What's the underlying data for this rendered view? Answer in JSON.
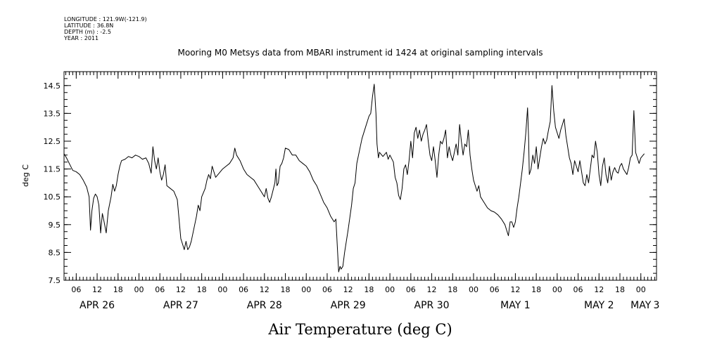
{
  "header": {
    "lines": [
      "LONGITUDE : 121.9W(-121.9)",
      "LATITUDE : 36.8N",
      "DEPTH (m) : -2.5",
      "YEAR : 2011"
    ]
  },
  "chart_data": {
    "type": "line",
    "title": "Mooring M0 Metsys data from MBARI instrument id 1424 at original sampling intervals",
    "xlabel": "Air Temperature (deg C)",
    "ylabel": "deg C",
    "ylim": [
      7.5,
      15.0
    ],
    "xlim": [
      2.5,
      172.5
    ],
    "y_ticks": [
      "7.5",
      "8.5",
      "9.5",
      "10.5",
      "11.5",
      "12.5",
      "13.5",
      "14.5"
    ],
    "x_hour_ticks": [
      {
        "x": 6,
        "label": "06"
      },
      {
        "x": 12,
        "label": "12"
      },
      {
        "x": 18,
        "label": "18"
      },
      {
        "x": 24,
        "label": "00"
      },
      {
        "x": 30,
        "label": "06"
      },
      {
        "x": 36,
        "label": "12"
      },
      {
        "x": 42,
        "label": "18"
      },
      {
        "x": 48,
        "label": "00"
      },
      {
        "x": 54,
        "label": "06"
      },
      {
        "x": 60,
        "label": "12"
      },
      {
        "x": 66,
        "label": "18"
      },
      {
        "x": 72,
        "label": "00"
      },
      {
        "x": 78,
        "label": "06"
      },
      {
        "x": 84,
        "label": "12"
      },
      {
        "x": 90,
        "label": "18"
      },
      {
        "x": 96,
        "label": "00"
      },
      {
        "x": 102,
        "label": "06"
      },
      {
        "x": 108,
        "label": "12"
      },
      {
        "x": 114,
        "label": "18"
      },
      {
        "x": 120,
        "label": "00"
      },
      {
        "x": 126,
        "label": "06"
      },
      {
        "x": 132,
        "label": "12"
      },
      {
        "x": 138,
        "label": "18"
      },
      {
        "x": 144,
        "label": "00"
      },
      {
        "x": 150,
        "label": "06"
      },
      {
        "x": 156,
        "label": "12"
      },
      {
        "x": 162,
        "label": "18"
      },
      {
        "x": 168,
        "label": "00"
      }
    ],
    "x_day_labels": [
      {
        "x": 12,
        "label": "APR 26"
      },
      {
        "x": 36,
        "label": "APR 27"
      },
      {
        "x": 60,
        "label": "APR 28"
      },
      {
        "x": 84,
        "label": "APR 29"
      },
      {
        "x": 108,
        "label": "APR 30"
      },
      {
        "x": 132,
        "label": "MAY  1"
      },
      {
        "x": 156,
        "label": "MAY  2"
      },
      {
        "x": 168,
        "label": "MAY"
      },
      {
        "x": 172.5,
        "label": "3"
      }
    ],
    "series": [
      {
        "color": "#000000",
        "points": [
          [
            2.5,
            12.05
          ],
          [
            3.2,
            11.9
          ],
          [
            4,
            11.7
          ],
          [
            5,
            11.45
          ],
          [
            6,
            11.4
          ],
          [
            7,
            11.3
          ],
          [
            8,
            11.1
          ],
          [
            9,
            10.85
          ],
          [
            9.7,
            10.5
          ],
          [
            10.1,
            9.3
          ],
          [
            10.5,
            10.0
          ],
          [
            11,
            10.45
          ],
          [
            11.5,
            10.6
          ],
          [
            12,
            10.5
          ],
          [
            12.5,
            10.2
          ],
          [
            13,
            9.2
          ],
          [
            13.5,
            9.9
          ],
          [
            14,
            9.6
          ],
          [
            14.6,
            9.2
          ],
          [
            15.2,
            10.0
          ],
          [
            16,
            10.5
          ],
          [
            16.5,
            10.95
          ],
          [
            17,
            10.7
          ],
          [
            17.5,
            10.9
          ],
          [
            18,
            11.3
          ],
          [
            18.5,
            11.6
          ],
          [
            19,
            11.8
          ],
          [
            20,
            11.85
          ],
          [
            21,
            11.95
          ],
          [
            22,
            11.9
          ],
          [
            23,
            12.0
          ],
          [
            24,
            11.95
          ],
          [
            25,
            11.85
          ],
          [
            26,
            11.9
          ],
          [
            26.8,
            11.7
          ],
          [
            27.5,
            11.35
          ],
          [
            28,
            12.3
          ],
          [
            28.5,
            11.8
          ],
          [
            29,
            11.5
          ],
          [
            29.5,
            11.9
          ],
          [
            30,
            11.4
          ],
          [
            30.5,
            11.1
          ],
          [
            31,
            11.3
          ],
          [
            31.5,
            11.65
          ],
          [
            32,
            10.9
          ],
          [
            33,
            10.8
          ],
          [
            34,
            10.7
          ],
          [
            35,
            10.4
          ],
          [
            35.5,
            9.7
          ],
          [
            36,
            9.0
          ],
          [
            36.5,
            8.8
          ],
          [
            37,
            8.6
          ],
          [
            37.5,
            8.9
          ],
          [
            38,
            8.6
          ],
          [
            38.5,
            8.7
          ],
          [
            39,
            8.9
          ],
          [
            39.5,
            9.2
          ],
          [
            40,
            9.5
          ],
          [
            40.5,
            9.8
          ],
          [
            41,
            10.2
          ],
          [
            41.5,
            10.0
          ],
          [
            42,
            10.5
          ],
          [
            43,
            10.8
          ],
          [
            43.5,
            11.1
          ],
          [
            44,
            11.3
          ],
          [
            44.5,
            11.15
          ],
          [
            45,
            11.6
          ],
          [
            46,
            11.2
          ],
          [
            47,
            11.35
          ],
          [
            48,
            11.5
          ],
          [
            49,
            11.6
          ],
          [
            50,
            11.7
          ],
          [
            51,
            11.9
          ],
          [
            51.5,
            12.25
          ],
          [
            52,
            12.0
          ],
          [
            53,
            11.8
          ],
          [
            54,
            11.5
          ],
          [
            55,
            11.3
          ],
          [
            56,
            11.2
          ],
          [
            57,
            11.1
          ],
          [
            58,
            10.9
          ],
          [
            59,
            10.7
          ],
          [
            60,
            10.5
          ],
          [
            60.5,
            10.8
          ],
          [
            61,
            10.45
          ],
          [
            61.5,
            10.3
          ],
          [
            62,
            10.5
          ],
          [
            63,
            11.0
          ],
          [
            63.3,
            11.5
          ],
          [
            63.6,
            10.9
          ],
          [
            64,
            11.0
          ],
          [
            64.5,
            11.6
          ],
          [
            65,
            11.7
          ],
          [
            65.5,
            11.9
          ],
          [
            66,
            12.25
          ],
          [
            67,
            12.2
          ],
          [
            68,
            12.0
          ],
          [
            69,
            12.0
          ],
          [
            70,
            11.8
          ],
          [
            71,
            11.7
          ],
          [
            72,
            11.6
          ],
          [
            73,
            11.4
          ],
          [
            74,
            11.1
          ],
          [
            75,
            10.9
          ],
          [
            76,
            10.6
          ],
          [
            77,
            10.3
          ],
          [
            78,
            10.1
          ],
          [
            79,
            9.8
          ],
          [
            80,
            9.6
          ],
          [
            80.5,
            9.7
          ],
          [
            81,
            8.5
          ],
          [
            81.3,
            7.8
          ],
          [
            81.7,
            8.0
          ],
          [
            82,
            7.9
          ],
          [
            82.5,
            8.0
          ],
          [
            83,
            8.5
          ],
          [
            84,
            9.3
          ],
          [
            85,
            10.2
          ],
          [
            85.5,
            10.8
          ],
          [
            86,
            11.0
          ],
          [
            86.5,
            11.7
          ],
          [
            87,
            12.0
          ],
          [
            87.5,
            12.3
          ],
          [
            88,
            12.6
          ],
          [
            89,
            13.0
          ],
          [
            90,
            13.4
          ],
          [
            90.5,
            13.5
          ],
          [
            91,
            14.1
          ],
          [
            91.5,
            14.55
          ],
          [
            92,
            13.5
          ],
          [
            92.3,
            12.4
          ],
          [
            92.7,
            11.9
          ],
          [
            93,
            12.1
          ],
          [
            94,
            11.95
          ],
          [
            95,
            12.1
          ],
          [
            95.5,
            11.85
          ],
          [
            96,
            12.0
          ],
          [
            97,
            11.75
          ],
          [
            97.5,
            11.2
          ],
          [
            98,
            11.0
          ],
          [
            98.5,
            10.55
          ],
          [
            99,
            10.4
          ],
          [
            99.5,
            10.8
          ],
          [
            100,
            11.5
          ],
          [
            100.5,
            11.65
          ],
          [
            101,
            11.3
          ],
          [
            101.5,
            11.8
          ],
          [
            102,
            12.5
          ],
          [
            102.5,
            11.9
          ],
          [
            103,
            12.8
          ],
          [
            103.5,
            13.0
          ],
          [
            104,
            12.6
          ],
          [
            104.5,
            12.9
          ],
          [
            105,
            12.5
          ],
          [
            105.5,
            12.75
          ],
          [
            106,
            12.9
          ],
          [
            106.5,
            13.1
          ],
          [
            107,
            12.5
          ],
          [
            107.5,
            12.0
          ],
          [
            108,
            11.8
          ],
          [
            108.5,
            12.3
          ],
          [
            109,
            11.8
          ],
          [
            109.5,
            11.2
          ],
          [
            110,
            12.0
          ],
          [
            110.5,
            12.5
          ],
          [
            111,
            12.4
          ],
          [
            111.5,
            12.6
          ],
          [
            112,
            12.9
          ],
          [
            112.5,
            11.9
          ],
          [
            113,
            12.3
          ],
          [
            113.5,
            12.0
          ],
          [
            114,
            11.8
          ],
          [
            114.5,
            12.1
          ],
          [
            115,
            12.4
          ],
          [
            115.5,
            12.0
          ],
          [
            116,
            13.1
          ],
          [
            116.5,
            12.5
          ],
          [
            117,
            12.0
          ],
          [
            117.5,
            12.4
          ],
          [
            118,
            12.3
          ],
          [
            118.5,
            12.9
          ],
          [
            119,
            12.0
          ],
          [
            119.5,
            11.5
          ],
          [
            120,
            11.1
          ],
          [
            120.5,
            10.9
          ],
          [
            121,
            10.7
          ],
          [
            121.5,
            10.9
          ],
          [
            122,
            10.5
          ],
          [
            123,
            10.3
          ],
          [
            124,
            10.1
          ],
          [
            125,
            10.0
          ],
          [
            126,
            9.95
          ],
          [
            127,
            9.85
          ],
          [
            128,
            9.7
          ],
          [
            129,
            9.5
          ],
          [
            129.5,
            9.3
          ],
          [
            130,
            9.1
          ],
          [
            130.5,
            9.6
          ],
          [
            131,
            9.6
          ],
          [
            131.5,
            9.4
          ],
          [
            132,
            9.6
          ],
          [
            132.5,
            10.1
          ],
          [
            133,
            10.5
          ],
          [
            133.5,
            11.0
          ],
          [
            134,
            11.5
          ],
          [
            134.5,
            12.1
          ],
          [
            135,
            12.8
          ],
          [
            135.5,
            13.7
          ],
          [
            135.8,
            12.6
          ],
          [
            136,
            11.3
          ],
          [
            136.5,
            11.5
          ],
          [
            137,
            12.0
          ],
          [
            137.5,
            11.7
          ],
          [
            138,
            12.3
          ],
          [
            138.5,
            11.5
          ],
          [
            139,
            11.9
          ],
          [
            139.5,
            12.3
          ],
          [
            140,
            12.6
          ],
          [
            140.5,
            12.4
          ],
          [
            141,
            12.55
          ],
          [
            141.5,
            12.9
          ],
          [
            142,
            13.2
          ],
          [
            142.5,
            14.5
          ],
          [
            143,
            13.6
          ],
          [
            143.5,
            13.0
          ],
          [
            144,
            12.8
          ],
          [
            144.5,
            12.6
          ],
          [
            145,
            12.9
          ],
          [
            145.5,
            13.1
          ],
          [
            146,
            13.3
          ],
          [
            146.5,
            12.7
          ],
          [
            147,
            12.3
          ],
          [
            147.5,
            11.9
          ],
          [
            148,
            11.7
          ],
          [
            148.5,
            11.3
          ],
          [
            149,
            11.8
          ],
          [
            149.5,
            11.6
          ],
          [
            150,
            11.4
          ],
          [
            150.5,
            11.8
          ],
          [
            151,
            11.4
          ],
          [
            151.5,
            11.0
          ],
          [
            152,
            10.9
          ],
          [
            152.5,
            11.3
          ],
          [
            153,
            11.0
          ],
          [
            153.5,
            11.5
          ],
          [
            154,
            12.0
          ],
          [
            154.5,
            11.9
          ],
          [
            155,
            12.5
          ],
          [
            155.5,
            12.1
          ],
          [
            156,
            11.3
          ],
          [
            156.5,
            10.9
          ],
          [
            157,
            11.6
          ],
          [
            157.5,
            11.9
          ],
          [
            158,
            11.3
          ],
          [
            158.5,
            11.0
          ],
          [
            159,
            11.6
          ],
          [
            159.5,
            11.1
          ],
          [
            160,
            11.4
          ],
          [
            160.5,
            11.55
          ],
          [
            161,
            11.4
          ],
          [
            161.5,
            11.35
          ],
          [
            162,
            11.6
          ],
          [
            162.5,
            11.7
          ],
          [
            163,
            11.5
          ],
          [
            163.5,
            11.4
          ],
          [
            164,
            11.3
          ],
          [
            164.5,
            11.55
          ],
          [
            165,
            11.9
          ],
          [
            165.5,
            12.0
          ],
          [
            166,
            13.6
          ],
          [
            166.5,
            12.1
          ],
          [
            167,
            11.9
          ],
          [
            167.5,
            11.7
          ],
          [
            168,
            11.9
          ],
          [
            169,
            12.05
          ]
        ]
      }
    ]
  }
}
